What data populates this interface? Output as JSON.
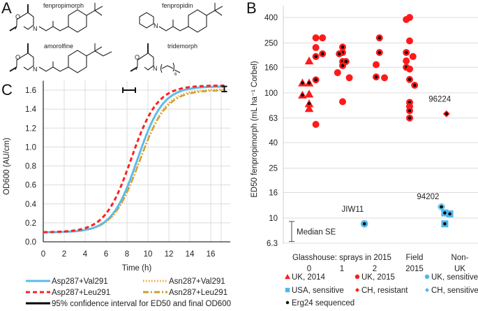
{
  "panels": {
    "A": {
      "letter": "A",
      "molecules": [
        {
          "name": "fenpropimorph"
        },
        {
          "name": "fenpropidin"
        },
        {
          "name": "amorolfine"
        },
        {
          "name": "tridemorph",
          "subscript": "6"
        }
      ],
      "atom_labels": {
        "O": "O",
        "N": "N"
      }
    },
    "B": {
      "letter": "B"
    },
    "C": {
      "letter": "C"
    }
  },
  "chart_data": [
    {
      "id": "B",
      "type": "scatter",
      "title": "",
      "ylabel": "ED50 fenpropimorph (mL ha⁻¹ Corbel)",
      "yscale": "log",
      "ylim": [
        6.3,
        450
      ],
      "yticks": [
        "400",
        "250",
        "160",
        "100",
        "63",
        "40",
        "25",
        "16",
        "10",
        "6.3"
      ],
      "ytick_values": [
        400,
        250,
        160,
        100,
        63,
        40,
        25,
        16,
        10,
        6.3
      ],
      "grid": true,
      "xgroups": [
        {
          "label_line1": "Glasshouse: sprays in 2015",
          "label_line2": "0",
          "x": 0
        },
        {
          "label_line1": "",
          "label_line2": "1",
          "x": 1
        },
        {
          "label_line1": "",
          "label_line2": "2",
          "x": 2
        },
        {
          "label_line1": "Field",
          "label_line2": "2015",
          "x": 3
        },
        {
          "label_line1": "Non-",
          "label_line2": "UK",
          "x": 4
        }
      ],
      "series": [
        {
          "name": "UK, 2014",
          "marker": "triangle",
          "color": "#ff1a1a",
          "points": [
            [
              -0.2,
              120,
              true
            ],
            [
              0,
              120,
              true
            ],
            [
              -0.2,
              96,
              true
            ],
            [
              0,
              98,
              false
            ],
            [
              0,
              180,
              false
            ],
            [
              0,
              82,
              true
            ],
            [
              0,
              75,
              false
            ]
          ]
        },
        {
          "name": "UK, 2015",
          "marker": "circle",
          "color": "#ff1a1a",
          "points": [
            [
              0.2,
              275,
              false
            ],
            [
              0.2,
              230,
              false
            ],
            [
              0.4,
              275,
              false
            ],
            [
              0.2,
              195,
              true
            ],
            [
              0.4,
              205,
              true
            ],
            [
              0.2,
              127,
              true
            ],
            [
              0.2,
              56,
              false
            ],
            [
              1,
              232,
              true
            ],
            [
              1,
              210,
              true
            ],
            [
              0.9,
              205,
              true
            ],
            [
              1,
              178,
              true
            ],
            [
              1.1,
              178,
              true
            ],
            [
              1,
              165,
              true
            ],
            [
              0.85,
              145,
              false
            ],
            [
              1.2,
              132,
              false
            ],
            [
              1,
              85,
              false
            ],
            [
              2.1,
              275,
              true
            ],
            [
              2.1,
              210,
              true
            ],
            [
              2,
              168,
              false
            ],
            [
              2,
              134,
              true
            ],
            [
              2.25,
              132,
              false
            ],
            [
              3,
              400,
              false
            ],
            [
              2.9,
              385,
              false
            ],
            [
              3,
              260,
              false
            ],
            [
              2.9,
              210,
              true
            ],
            [
              3.1,
              195,
              false
            ],
            [
              2.9,
              180,
              false
            ],
            [
              2.9,
              160,
              true
            ],
            [
              3,
              155,
              false
            ],
            [
              3,
              128,
              true
            ],
            [
              3.15,
              115,
              true
            ],
            [
              3,
              84,
              true
            ],
            [
              3,
              78,
              false
            ],
            [
              3,
              72,
              true
            ],
            [
              3,
              63,
              true
            ]
          ]
        },
        {
          "name": "UK, sensitive",
          "marker": "circle",
          "color": "#4fb8e8",
          "points": [
            [
              1.65,
              9.0,
              true
            ]
          ]
        },
        {
          "name": "USA, sensitive",
          "marker": "square",
          "color": "#4fb8e8",
          "points": [
            [
              4.05,
              11.0,
              true
            ],
            [
              4.2,
              10.8,
              true
            ],
            [
              4.05,
              9.0,
              true
            ]
          ]
        },
        {
          "name": "CH, resistant",
          "marker": "diamond",
          "color": "#ff1a1a",
          "points": [
            [
              4.1,
              68,
              true
            ]
          ]
        },
        {
          "name": "CH, sensitive",
          "marker": "diamond",
          "color": "#4fb8e8",
          "points": [
            [
              3.95,
              12.3,
              true
            ]
          ]
        }
      ],
      "overlay_marker": {
        "name": "Erg24 sequenced",
        "marker": "dot",
        "color": "#000000"
      },
      "annotations": [
        {
          "text": "96224",
          "x": 3.9,
          "y": 85
        },
        {
          "text": "JIW11",
          "x": 1.3,
          "y": 11.2
        },
        {
          "text": "94202",
          "x": 3.55,
          "y": 14.2
        },
        {
          "text": "Median SE",
          "x": 0,
          "y": 7.8
        }
      ],
      "median_se": {
        "low": 6.5,
        "high": 9.4
      },
      "legend": [
        {
          "label": "UK, 2014",
          "marker": "triangle",
          "color": "#ff1a1a"
        },
        {
          "label": "UK, 2015",
          "marker": "circle",
          "color": "#ff1a1a"
        },
        {
          "label": "UK, sensitive",
          "marker": "circle",
          "color": "#4fb8e8"
        },
        {
          "label": "USA, sensitive",
          "marker": "square",
          "color": "#4fb8e8"
        },
        {
          "label": "CH, resistant",
          "marker": "diamond",
          "color": "#ff1a1a"
        },
        {
          "label": "CH, sensitive",
          "marker": "diamond",
          "color": "#4fb8e8"
        },
        {
          "label": "Erg24 sequenced",
          "marker": "dot",
          "color": "#000000"
        }
      ],
      "legend_placement": "bottom"
    },
    {
      "id": "C",
      "type": "line",
      "title": "",
      "xlabel": "Time (h)",
      "ylabel": "OD600 (AU/cm)",
      "xlim": [
        0,
        18
      ],
      "ylim": [
        0,
        1.7
      ],
      "xticks": [
        "0",
        "2",
        "4",
        "6",
        "8",
        "10",
        "12",
        "14",
        "16"
      ],
      "xtick_values": [
        0,
        2,
        4,
        6,
        8,
        10,
        12,
        14,
        16
      ],
      "yticks": [
        "0.0",
        "0.2",
        "0.4",
        "0.6",
        "0.8",
        "1.0",
        "1.2",
        "1.4",
        "1.6"
      ],
      "ytick_values": [
        0,
        0.2,
        0.4,
        0.6,
        0.8,
        1.0,
        1.2,
        1.4,
        1.6
      ],
      "grid": true,
      "series": [
        {
          "name": "Asp287+Val291",
          "color": "#5bbde8",
          "style": "solid",
          "logistic": {
            "base": 0.1,
            "max": 1.64,
            "t50": 9.0,
            "k": 0.82
          }
        },
        {
          "name": "Asn287+Val291",
          "color": "#f0a030",
          "style": "dotted",
          "logistic": {
            "base": 0.1,
            "max": 1.61,
            "t50": 9.2,
            "k": 0.8
          }
        },
        {
          "name": "Asp287+Leu291",
          "color": "#ff2020",
          "style": "dashed",
          "logistic": {
            "base": 0.1,
            "max": 1.65,
            "t50": 8.4,
            "k": 0.8
          }
        },
        {
          "name": "Asn287+Leu291",
          "color": "#c9a030",
          "style": "longdash",
          "logistic": {
            "base": 0.1,
            "max": 1.6,
            "t50": 9.2,
            "k": 0.78
          }
        }
      ],
      "confidence_intervals": [
        {
          "type": "horizontal",
          "label": "ED50",
          "x_low": 7.6,
          "x_high": 8.8,
          "y": 1.6
        },
        {
          "type": "vertical",
          "label": "final OD600",
          "x": 17.3,
          "y_low": 1.585,
          "y_high": 1.64
        }
      ],
      "legend": [
        {
          "label": "Asp287+Val291",
          "color": "#5bbde8",
          "style": "solid"
        },
        {
          "label": "Asn287+Val291",
          "color": "#f0a030",
          "style": "dotted"
        },
        {
          "label": "Asp287+Leu291",
          "color": "#ff2020",
          "style": "dashed"
        },
        {
          "label": "Asn287+Leu291",
          "color": "#c9a030",
          "style": "longdash"
        },
        {
          "label": "95% confidence interval for ED50 and final OD600",
          "color": "#000000",
          "style": "solid"
        }
      ],
      "legend_placement": "bottom"
    }
  ]
}
